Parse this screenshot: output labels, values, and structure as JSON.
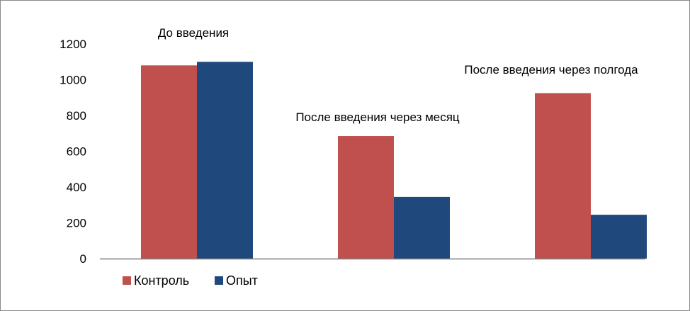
{
  "chart_data": {
    "type": "bar",
    "categories": [
      "До введения",
      "После введения через месяц",
      "После введения через полгода"
    ],
    "series": [
      {
        "name": "Контроль",
        "values": [
          1080,
          685,
          925
        ]
      },
      {
        "name": "Опыт",
        "values": [
          1100,
          345,
          245
        ]
      }
    ],
    "title": "",
    "xlabel": "",
    "ylabel": "",
    "ylim": [
      0,
      1200
    ],
    "yticks": [
      0,
      200,
      400,
      600,
      800,
      1000,
      1200
    ],
    "grid": false,
    "legend_position": "bottom-left",
    "colors": {
      "Контроль": "#c0504d",
      "Опыт": "#1f497d"
    }
  }
}
